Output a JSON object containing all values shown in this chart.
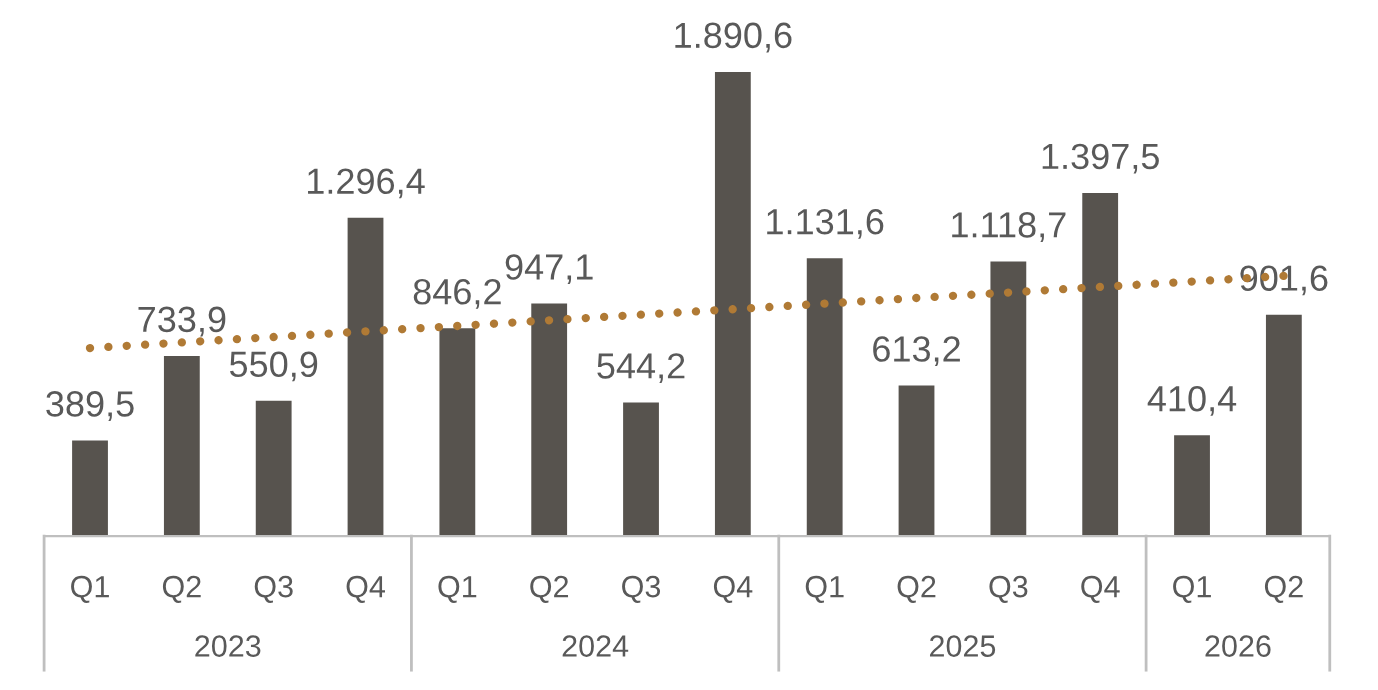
{
  "chart_data": {
    "type": "bar",
    "categories": [
      "Q1",
      "Q2",
      "Q3",
      "Q4",
      "Q1",
      "Q2",
      "Q3",
      "Q4",
      "Q1",
      "Q2",
      "Q3",
      "Q4",
      "Q1",
      "Q2"
    ],
    "series": [
      {
        "color": "#57534e",
        "values": [
          389.5,
          733.9,
          550.9,
          1296.4,
          846.2,
          947.1,
          544.2,
          1890.6,
          1131.6,
          613.2,
          1118.7,
          1397.5,
          410.4,
          901.6
        ],
        "value_labels": [
          "389,5",
          "733,9",
          "550,9",
          "1.296,4",
          "846,2",
          "947,1",
          "544,2",
          "1.890,6",
          "1.131,6",
          "613,2",
          "1.118,7",
          "1.397,5",
          "410,4",
          "901,6"
        ]
      },
      {
        "type": "line",
        "color": "#b07a35",
        "line_style": "dotted",
        "values": [
          766,
          789,
          811,
          834,
          856,
          879,
          902,
          924,
          947,
          970,
          992,
          1015,
          1037,
          1060
        ]
      }
    ],
    "annotations": [
      "2023",
      "2024",
      "2025",
      "2026"
    ],
    "grid": false,
    "legend": false
  }
}
